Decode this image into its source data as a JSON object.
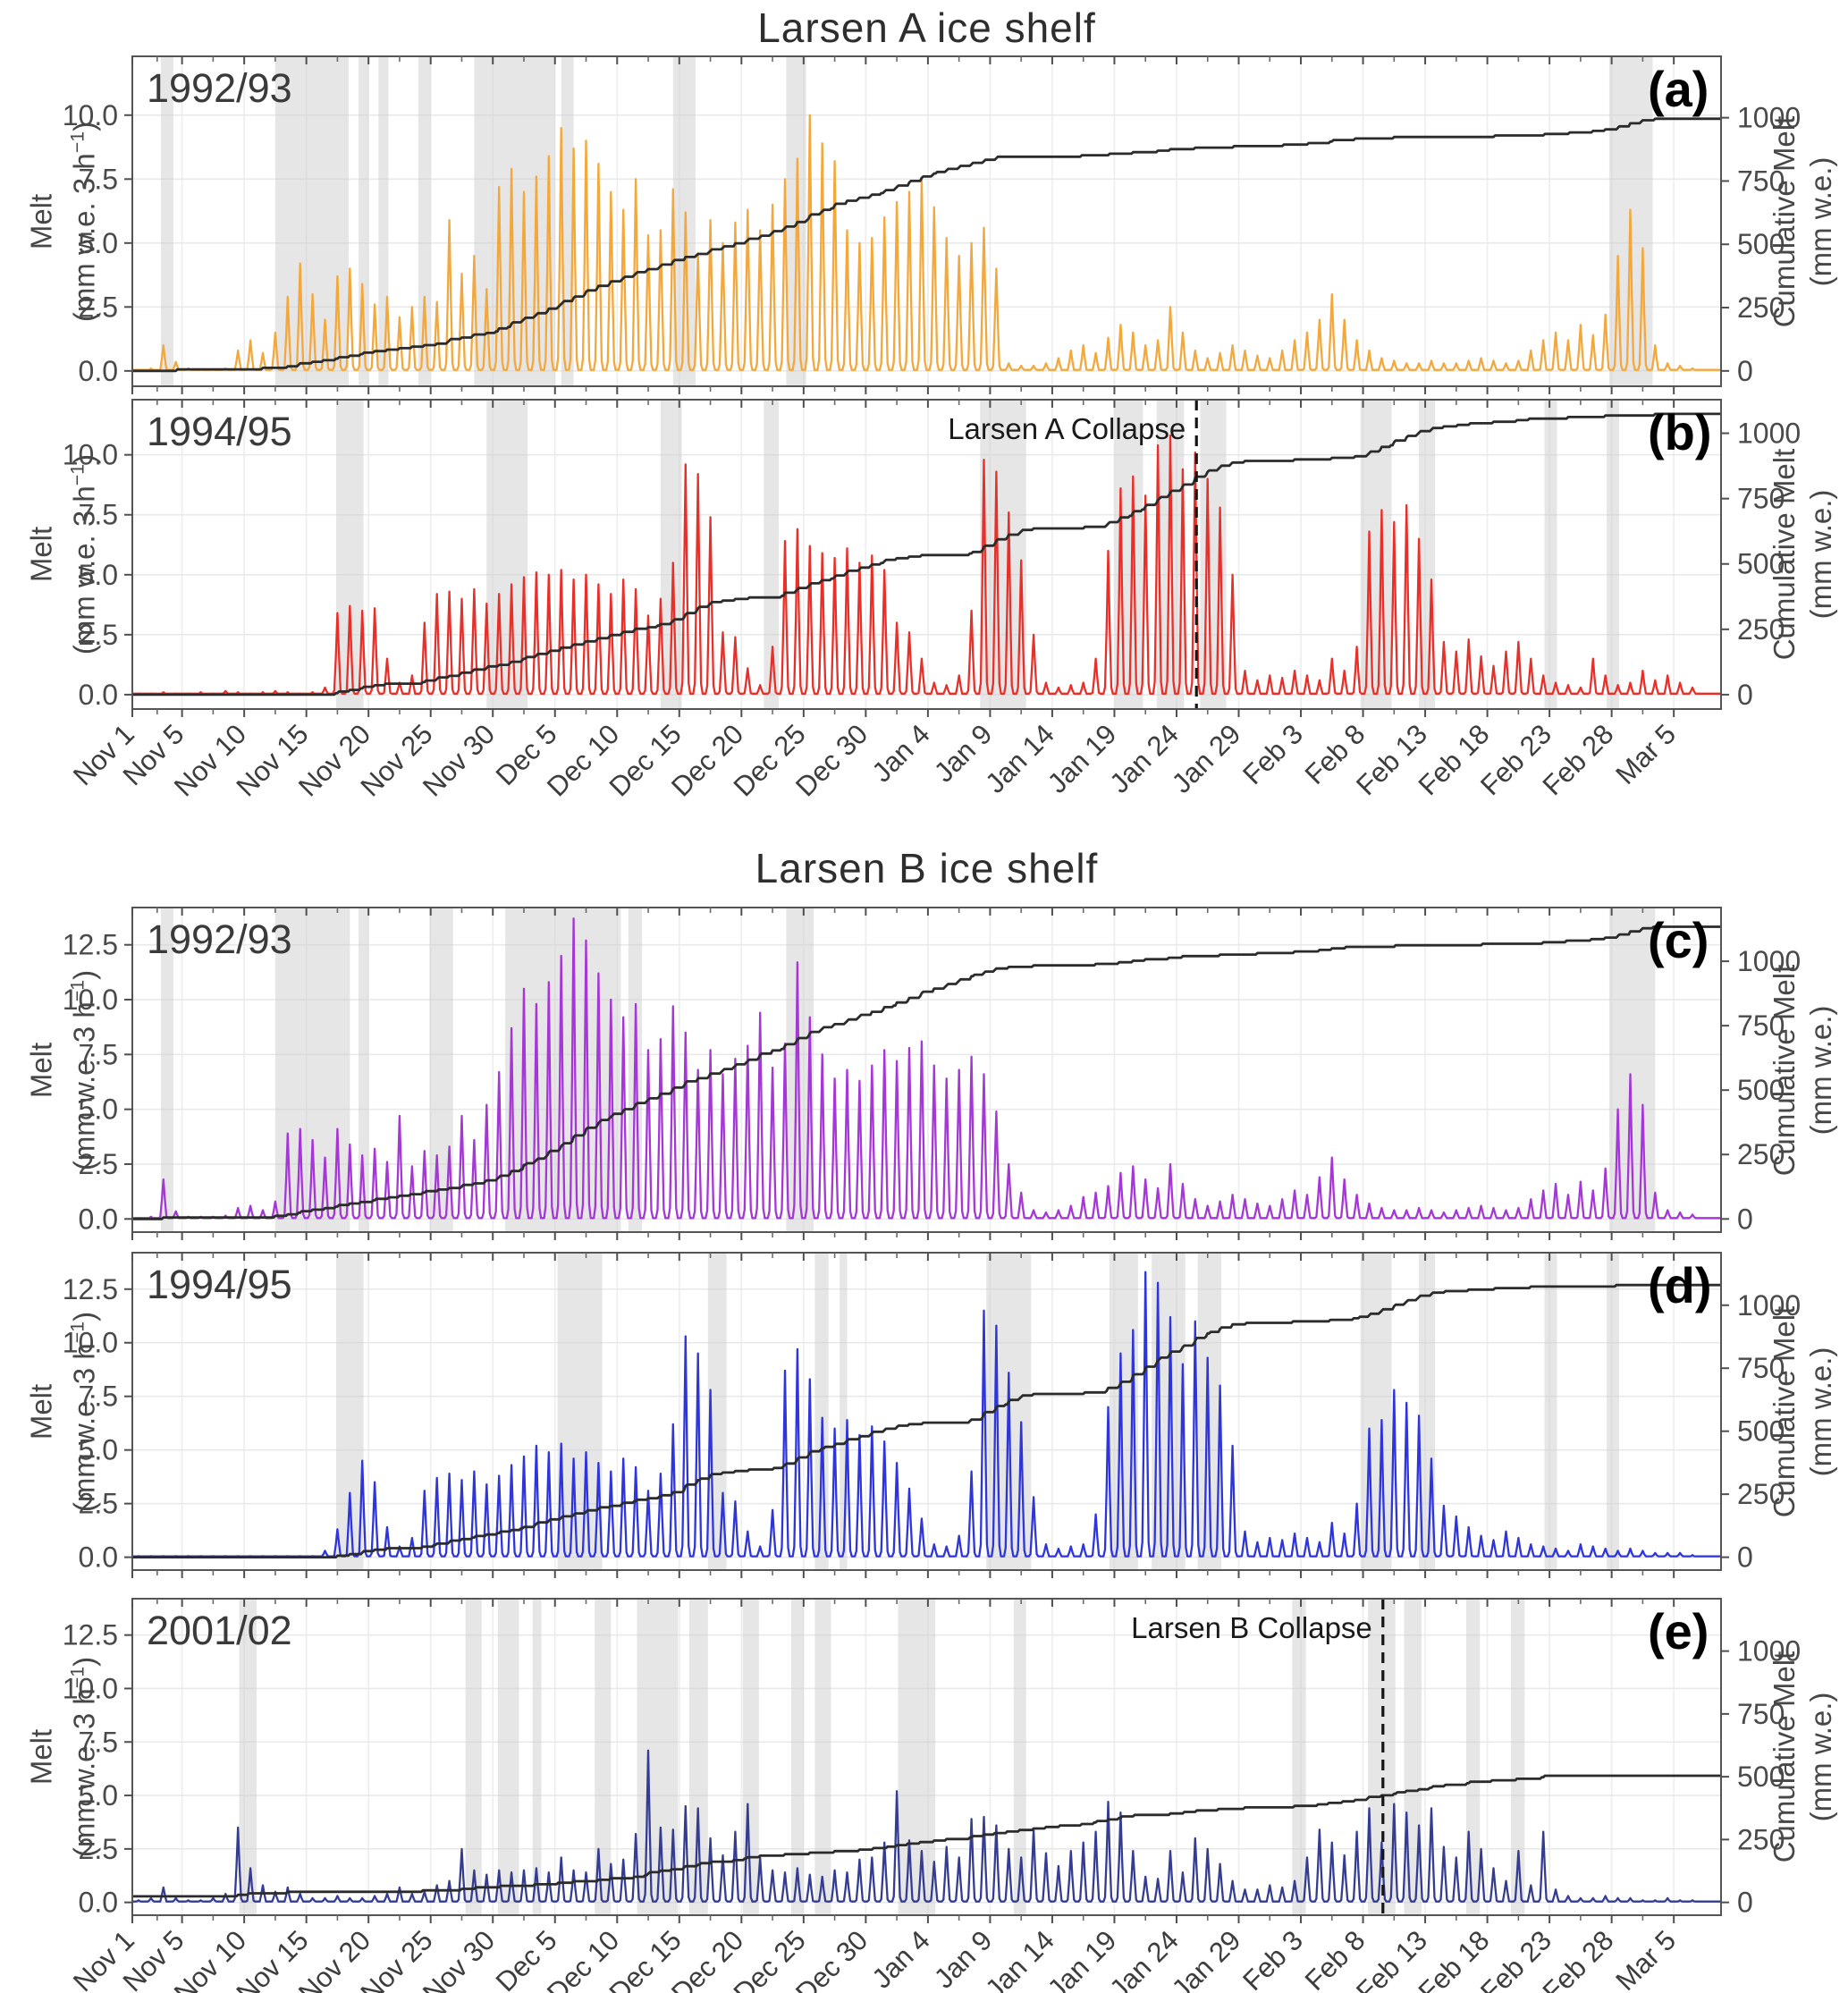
{
  "figure": {
    "title_a": "Larsen A ice shelf",
    "title_b": "Larsen B ice shelf"
  },
  "axes": {
    "melt_label_line1": "Melt",
    "melt_label_line2_pre": "(mm w.e. 3 h",
    "melt_label_sup": "−1",
    "melt_label_line2_post": ")",
    "cum_label_line1": "Cumulative Melt",
    "cum_label_line2": "(mm w.e.)",
    "x_tick_labels": [
      "Nov 1",
      "Nov 5",
      "Nov 10",
      "Nov 15",
      "Nov 20",
      "Nov 25",
      "Nov 30",
      "Dec 5",
      "Dec 10",
      "Dec 15",
      "Dec 20",
      "Dec 25",
      "Dec 30",
      "Jan 4",
      "Jan 9",
      "Jan 14",
      "Jan 19",
      "Jan 24",
      "Jan 29",
      "Feb 3",
      "Feb 8",
      "Feb 13",
      "Feb 18",
      "Feb 23",
      "Feb 28",
      "Mar 5"
    ],
    "x_tick_days": [
      0,
      4,
      9,
      14,
      19,
      24,
      29,
      34,
      39,
      44,
      49,
      54,
      59,
      64,
      69,
      74,
      79,
      84,
      89,
      94,
      99,
      104,
      109,
      114,
      119,
      124
    ]
  },
  "chart_data": [
    {
      "panel_label": "(a)",
      "key": "a",
      "shelf": "Larsen A",
      "year": "1992/93",
      "type": "line",
      "color": "#F2A83C",
      "cumulative_color": "#2b2b2b",
      "melt_units": "mm w.e. 3 h-1",
      "cum_units": "mm w.e.",
      "y_ticks": [
        0.0,
        2.5,
        5.0,
        7.5,
        10.0
      ],
      "ylim": [
        -0.6,
        12.3
      ],
      "cum_ticks": [
        0,
        250,
        500,
        750,
        1000
      ],
      "cum_1000_melt_equiv": 9.9,
      "cumulative_start": 0,
      "cumulative_final": 995,
      "collapse": null,
      "shaded_day_ranges": [
        [
          2.3,
          3.3
        ],
        [
          11.5,
          17.4
        ],
        [
          18.2,
          19.0
        ],
        [
          19.8,
          20.6
        ],
        [
          23.0,
          24.0
        ],
        [
          27.5,
          34.0
        ],
        [
          34.5,
          35.5
        ],
        [
          43.5,
          45.3
        ],
        [
          52.6,
          54.2
        ],
        [
          118.8,
          122.3
        ]
      ],
      "daily_peak_melt": [
        0.05,
        0.1,
        1.0,
        0.35,
        0.1,
        0.05,
        0.05,
        0.1,
        0.8,
        1.2,
        0.7,
        1.5,
        2.9,
        4.2,
        3.0,
        2.0,
        3.7,
        4.0,
        3.4,
        2.6,
        2.9,
        2.1,
        2.5,
        2.9,
        2.7,
        5.9,
        3.8,
        4.5,
        3.2,
        7.2,
        7.9,
        7.0,
        7.6,
        8.4,
        9.5,
        8.7,
        9.0,
        8.1,
        7.0,
        6.3,
        7.5,
        5.3,
        5.5,
        7.1,
        6.2,
        4.6,
        5.9,
        5.0,
        5.8,
        6.3,
        5.5,
        6.5,
        7.5,
        8.3,
        10.0,
        8.9,
        8.2,
        5.5,
        5.0,
        5.2,
        6.0,
        6.6,
        7.0,
        7.5,
        6.4,
        5.2,
        4.5,
        5.0,
        5.6,
        4.0,
        0.3,
        0.2,
        0.2,
        0.3,
        0.5,
        0.8,
        1.0,
        0.7,
        1.3,
        1.8,
        1.5,
        1.0,
        1.2,
        2.5,
        1.5,
        0.8,
        0.5,
        0.7,
        1.0,
        0.8,
        0.6,
        0.5,
        0.8,
        1.2,
        1.5,
        2.0,
        3.0,
        2.0,
        1.2,
        0.8,
        0.5,
        0.4,
        0.3,
        0.3,
        0.4,
        0.3,
        0.3,
        0.4,
        0.5,
        0.4,
        0.3,
        0.4,
        0.8,
        1.2,
        1.5,
        1.2,
        1.8,
        1.4,
        2.2,
        4.5,
        6.3,
        4.8,
        1.0,
        0.3,
        0.2,
        0.1
      ]
    },
    {
      "panel_label": "(b)",
      "key": "b",
      "shelf": "Larsen A",
      "year": "1994/95",
      "type": "line",
      "color": "#E8302A",
      "cumulative_color": "#2b2b2b",
      "melt_units": "mm w.e. 3 h-1",
      "cum_units": "mm w.e.",
      "y_ticks": [
        0.0,
        2.5,
        5.0,
        7.5,
        10.0
      ],
      "ylim": [
        -0.6,
        12.3
      ],
      "cum_ticks": [
        0,
        250,
        500,
        750,
        1000
      ],
      "cum_1000_melt_equiv": 10.9,
      "cumulative_start": 0,
      "cumulative_final": 1075,
      "collapse": {
        "label": "Larsen A Collapse",
        "day": 85.6,
        "date": "Jan 25"
      },
      "shaded_day_ranges": [
        [
          16.4,
          18.6
        ],
        [
          28.5,
          31.8
        ],
        [
          42.5,
          44.2
        ],
        [
          50.8,
          52.0
        ],
        [
          68.2,
          71.9
        ],
        [
          79.0,
          81.3
        ],
        [
          82.4,
          84.6
        ],
        [
          85.9,
          88.0
        ],
        [
          98.8,
          101.3
        ],
        [
          103.5,
          104.8
        ],
        [
          113.6,
          114.6
        ],
        [
          118.6,
          119.6
        ]
      ],
      "daily_peak_melt": [
        0.05,
        0.05,
        0.1,
        0.05,
        0.05,
        0.1,
        0.05,
        0.15,
        0.1,
        0.05,
        0.1,
        0.15,
        0.1,
        0.05,
        0.1,
        0.3,
        3.4,
        3.7,
        3.5,
        3.6,
        1.5,
        0.5,
        0.8,
        3.0,
        4.2,
        4.3,
        4.0,
        4.4,
        3.8,
        4.2,
        4.6,
        4.9,
        5.1,
        5.0,
        5.2,
        4.8,
        5.0,
        4.6,
        4.2,
        4.8,
        4.4,
        3.3,
        4.0,
        5.5,
        9.6,
        9.2,
        7.4,
        2.6,
        2.4,
        1.1,
        0.4,
        2.0,
        6.4,
        6.9,
        6.2,
        5.9,
        5.7,
        6.1,
        5.5,
        5.8,
        5.2,
        3.0,
        2.6,
        1.5,
        0.5,
        0.4,
        0.8,
        3.5,
        9.8,
        9.3,
        7.6,
        5.6,
        2.5,
        0.5,
        0.3,
        0.4,
        0.5,
        1.5,
        6.0,
        8.6,
        9.1,
        8.3,
        10.4,
        10.8,
        9.4,
        10.1,
        9.0,
        7.8,
        5.0,
        1.0,
        0.6,
        0.8,
        0.7,
        1.0,
        0.8,
        0.6,
        1.5,
        1.0,
        2.0,
        6.8,
        7.7,
        7.2,
        7.9,
        6.5,
        4.8,
        2.2,
        1.8,
        2.3,
        1.6,
        1.2,
        1.8,
        2.2,
        1.5,
        0.8,
        0.5,
        0.4,
        0.3,
        1.5,
        0.8,
        0.4,
        0.5,
        1.0,
        0.6,
        0.8,
        0.5,
        0.3
      ]
    },
    {
      "panel_label": "(c)",
      "key": "c",
      "shelf": "Larsen B",
      "year": "1992/93",
      "type": "line",
      "color": "#A437D6",
      "cumulative_color": "#2b2b2b",
      "melt_units": "mm w.e. 3 h-1",
      "cum_units": "mm w.e.",
      "y_ticks": [
        0.0,
        2.5,
        5.0,
        7.5,
        10.0,
        12.5
      ],
      "ylim": [
        -0.6,
        14.2
      ],
      "cum_ticks": [
        0,
        250,
        500,
        750,
        1000
      ],
      "cum_1000_melt_equiv": 11.75,
      "cumulative_start": 0,
      "cumulative_final": 1135,
      "collapse": null,
      "shaded_day_ranges": [
        [
          2.3,
          3.3
        ],
        [
          11.5,
          17.5
        ],
        [
          18.2,
          19.0
        ],
        [
          23.9,
          25.8
        ],
        [
          30.0,
          39.3
        ],
        [
          39.9,
          41.0
        ],
        [
          52.6,
          54.8
        ],
        [
          118.8,
          122.5
        ]
      ],
      "daily_peak_melt": [
        0.05,
        0.1,
        1.8,
        0.35,
        0.1,
        0.1,
        0.1,
        0.15,
        0.5,
        0.6,
        0.4,
        0.8,
        3.9,
        4.1,
        3.6,
        2.8,
        4.1,
        3.4,
        2.9,
        3.2,
        2.6,
        4.7,
        2.4,
        3.1,
        2.9,
        3.3,
        4.7,
        3.6,
        5.2,
        6.7,
        8.7,
        10.5,
        9.8,
        10.8,
        12.0,
        13.7,
        12.7,
        11.2,
        10.0,
        9.2,
        9.8,
        7.7,
        8.2,
        9.7,
        8.5,
        6.8,
        7.7,
        6.6,
        7.3,
        7.9,
        9.4,
        6.9,
        8.0,
        11.7,
        9.2,
        7.5,
        6.4,
        6.8,
        6.3,
        7.0,
        7.7,
        7.2,
        7.8,
        8.1,
        7.0,
        6.4,
        6.8,
        7.4,
        6.6,
        4.9,
        2.5,
        1.2,
        0.4,
        0.3,
        0.4,
        0.6,
        1.0,
        1.2,
        1.5,
        2.1,
        2.4,
        1.8,
        1.4,
        2.5,
        1.6,
        0.9,
        0.6,
        0.8,
        1.1,
        0.9,
        0.7,
        0.6,
        0.9,
        1.3,
        1.1,
        1.9,
        2.8,
        1.8,
        1.1,
        0.7,
        0.5,
        0.4,
        0.4,
        0.5,
        0.4,
        0.3,
        0.4,
        0.5,
        0.6,
        0.5,
        0.4,
        0.5,
        0.9,
        1.3,
        1.6,
        1.1,
        1.7,
        1.3,
        2.3,
        5.0,
        6.6,
        5.2,
        1.2,
        0.4,
        0.3,
        0.2
      ]
    },
    {
      "panel_label": "(d)",
      "key": "d",
      "shelf": "Larsen B",
      "year": "1994/95",
      "type": "line",
      "color": "#2D35DB",
      "cumulative_color": "#2b2b2b",
      "melt_units": "mm w.e. 3 h-1",
      "cum_units": "mm w.e.",
      "y_ticks": [
        0.0,
        2.5,
        5.0,
        7.5,
        10.0,
        12.5
      ],
      "ylim": [
        -0.6,
        14.2
      ],
      "cum_ticks": [
        0,
        250,
        500,
        750,
        1000
      ],
      "cum_1000_melt_equiv": 11.75,
      "cumulative_start": 0,
      "cumulative_final": 1080,
      "collapse": null,
      "shaded_day_ranges": [
        [
          16.4,
          18.6
        ],
        [
          34.2,
          37.8
        ],
        [
          46.3,
          47.8
        ],
        [
          54.9,
          56.0
        ],
        [
          56.9,
          57.5
        ],
        [
          68.7,
          72.3
        ],
        [
          78.6,
          80.9
        ],
        [
          82.0,
          84.7
        ],
        [
          85.7,
          87.6
        ],
        [
          98.8,
          101.3
        ],
        [
          103.5,
          104.8
        ],
        [
          113.6,
          114.6
        ],
        [
          118.6,
          119.6
        ]
      ],
      "daily_peak_melt": [
        0.05,
        0.05,
        0.05,
        0.05,
        0.05,
        0.05,
        0.05,
        0.05,
        0.05,
        0.05,
        0.05,
        0.05,
        0.05,
        0.05,
        0.05,
        0.3,
        1.3,
        3.0,
        4.5,
        3.5,
        1.4,
        0.5,
        0.9,
        3.1,
        3.7,
        3.9,
        3.6,
        4.0,
        3.4,
        3.8,
        4.3,
        4.7,
        5.2,
        4.9,
        5.3,
        4.6,
        4.9,
        4.4,
        4.0,
        4.6,
        4.2,
        3.1,
        3.9,
        6.2,
        10.3,
        9.5,
        7.8,
        3.0,
        2.6,
        1.2,
        0.5,
        2.2,
        8.7,
        9.7,
        8.3,
        6.5,
        6.0,
        6.4,
        5.7,
        6.1,
        5.4,
        4.4,
        3.2,
        1.8,
        0.6,
        0.5,
        1.0,
        4.0,
        11.5,
        10.8,
        8.6,
        6.3,
        2.8,
        0.6,
        0.4,
        0.5,
        0.6,
        2.0,
        7.0,
        9.5,
        10.6,
        13.3,
        12.8,
        11.2,
        9.0,
        11.0,
        9.3,
        8.0,
        5.2,
        1.2,
        0.7,
        0.9,
        0.8,
        1.1,
        0.9,
        0.7,
        1.6,
        1.1,
        2.5,
        6.0,
        6.4,
        7.8,
        7.2,
        6.6,
        4.6,
        2.4,
        1.9,
        1.4,
        1.0,
        0.8,
        1.2,
        0.9,
        0.6,
        0.5,
        0.4,
        0.3,
        0.6,
        0.5,
        0.4,
        0.3,
        0.4,
        0.3,
        0.2,
        0.2,
        0.2,
        0.1
      ]
    },
    {
      "panel_label": "(e)",
      "key": "e",
      "shelf": "Larsen B",
      "year": "2001/02",
      "type": "line",
      "color": "#343D92",
      "cumulative_color": "#2b2b2b",
      "melt_units": "mm w.e. 3 h-1",
      "cum_units": "mm w.e.",
      "y_ticks": [
        0.0,
        2.5,
        5.0,
        7.5,
        10.0,
        12.5
      ],
      "ylim": [
        -0.6,
        14.2
      ],
      "cum_ticks": [
        0,
        250,
        500,
        750,
        1000
      ],
      "cum_1000_melt_equiv": 11.75,
      "cumulative_start": 22,
      "cumulative_final": 505,
      "collapse": {
        "label": "Larsen B Collapse",
        "day": 100.6,
        "date": "Feb 9"
      },
      "shaded_day_ranges": [
        [
          8.6,
          10.0
        ],
        [
          26.8,
          28.1
        ],
        [
          29.4,
          31.1
        ],
        [
          32.2,
          32.9
        ],
        [
          37.2,
          38.5
        ],
        [
          40.6,
          43.9
        ],
        [
          44.8,
          46.3
        ],
        [
          49.1,
          50.4
        ],
        [
          53.0,
          54.0
        ],
        [
          54.9,
          56.2
        ],
        [
          61.6,
          64.6
        ],
        [
          70.9,
          71.9
        ],
        [
          93.3,
          94.4
        ],
        [
          99.4,
          101.6
        ],
        [
          102.3,
          103.7
        ],
        [
          107.3,
          108.4
        ],
        [
          110.9,
          112.0
        ]
      ],
      "daily_peak_melt": [
        0.1,
        0.2,
        0.7,
        0.2,
        0.1,
        0.1,
        0.2,
        0.4,
        3.5,
        1.6,
        0.8,
        0.5,
        0.7,
        0.4,
        0.2,
        0.2,
        0.3,
        0.2,
        0.2,
        0.3,
        0.4,
        0.7,
        0.4,
        0.5,
        0.8,
        1.0,
        2.5,
        1.5,
        1.3,
        1.5,
        1.4,
        1.5,
        1.6,
        1.4,
        2.1,
        1.5,
        1.4,
        2.5,
        1.8,
        2.0,
        3.2,
        7.1,
        3.5,
        3.4,
        4.5,
        4.4,
        3.0,
        2.2,
        3.3,
        4.6,
        2.1,
        1.5,
        1.4,
        1.6,
        1.3,
        1.2,
        1.5,
        1.4,
        2.0,
        2.1,
        2.8,
        5.2,
        2.9,
        2.4,
        1.9,
        2.6,
        2.1,
        3.9,
        4.0,
        3.6,
        2.5,
        2.1,
        3.4,
        2.3,
        1.7,
        2.4,
        2.8,
        3.3,
        4.7,
        4.2,
        2.4,
        1.2,
        1.1,
        2.4,
        1.4,
        3.0,
        2.5,
        1.8,
        1.0,
        0.6,
        0.6,
        0.8,
        0.7,
        1.0,
        2.1,
        3.4,
        2.8,
        2.2,
        3.3,
        4.4,
        2.8,
        4.6,
        4.2,
        3.6,
        4.4,
        2.6,
        2.1,
        3.3,
        2.5,
        1.6,
        1.0,
        2.4,
        0.8,
        3.3,
        0.6,
        0.3,
        0.2,
        0.2,
        0.3,
        0.2,
        0.2,
        0.1,
        0.1,
        0.2,
        0.1,
        0.1
      ]
    }
  ]
}
